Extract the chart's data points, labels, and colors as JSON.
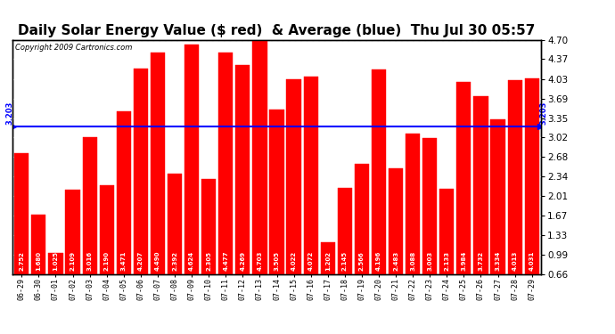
{
  "title": "Daily Solar Energy Value ($ red)  & Average (blue)  Thu Jul 30 05:57",
  "copyright": "Copyright 2009 Cartronics.com",
  "average": 3.203,
  "average_label": "3.203",
  "bar_color": "#ff0000",
  "avg_line_color": "#0000ff",
  "background_color": "#ffffff",
  "categories": [
    "06-29",
    "06-30",
    "07-01",
    "07-02",
    "07-03",
    "07-04",
    "07-05",
    "07-06",
    "07-07",
    "07-08",
    "07-09",
    "07-10",
    "07-11",
    "07-12",
    "07-13",
    "07-14",
    "07-15",
    "07-16",
    "07-17",
    "07-18",
    "07-19",
    "07-20",
    "07-21",
    "07-22",
    "07-23",
    "07-24",
    "07-25",
    "07-26",
    "07-27",
    "07-28",
    "07-29"
  ],
  "values": [
    2.752,
    1.68,
    1.025,
    2.109,
    3.016,
    2.19,
    3.471,
    4.207,
    4.49,
    2.392,
    4.624,
    2.305,
    4.477,
    4.269,
    4.703,
    3.505,
    4.022,
    4.072,
    1.202,
    2.145,
    2.566,
    4.196,
    2.483,
    3.088,
    3.003,
    2.133,
    3.984,
    3.732,
    3.334,
    4.013,
    4.031
  ],
  "ylim_min": 0.66,
  "ylim_max": 4.7,
  "yticks_right": [
    0.66,
    0.99,
    1.33,
    1.67,
    2.01,
    2.34,
    2.68,
    3.02,
    3.35,
    3.69,
    4.03,
    4.37,
    4.7
  ],
  "title_fontsize": 11,
  "bar_width": 0.85
}
